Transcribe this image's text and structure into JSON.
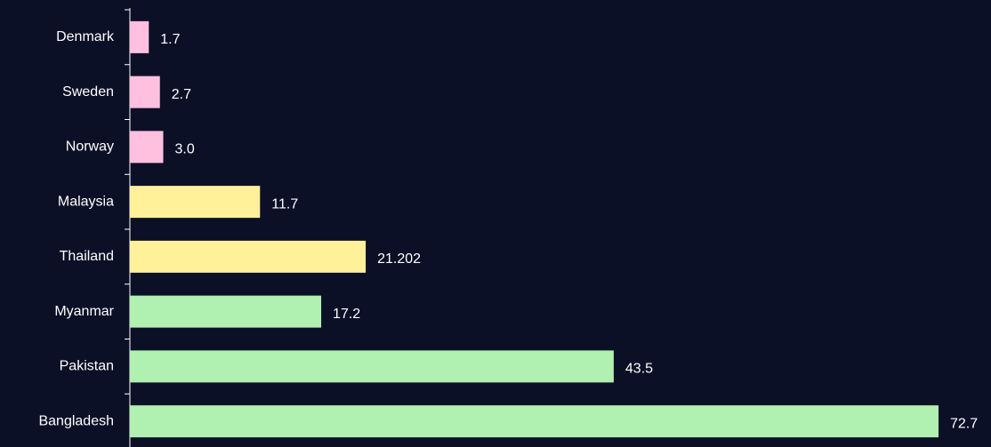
{
  "chart_data": {
    "type": "barh",
    "categories": [
      "Denmark",
      "Sweden",
      "Norway",
      "Malaysia",
      "Thailand",
      "Myanmar",
      "Pakistan",
      "Bangladesh"
    ],
    "values": [
      1.7,
      2.7,
      3.0,
      11.7,
      21.202,
      17.2,
      43.5,
      72.7
    ],
    "value_labels": [
      "1.7",
      "2.7",
      "3.0",
      "11.7",
      "21.202",
      "17.2",
      "43.5",
      "72.7"
    ],
    "colors": [
      "#ffc0e0",
      "#ffc0e0",
      "#ffc0e0",
      "#fff09a",
      "#fff09a",
      "#b0f0b0",
      "#b0f0b0",
      "#b0f0b0"
    ],
    "xlim": [
      0,
      72.7
    ]
  }
}
